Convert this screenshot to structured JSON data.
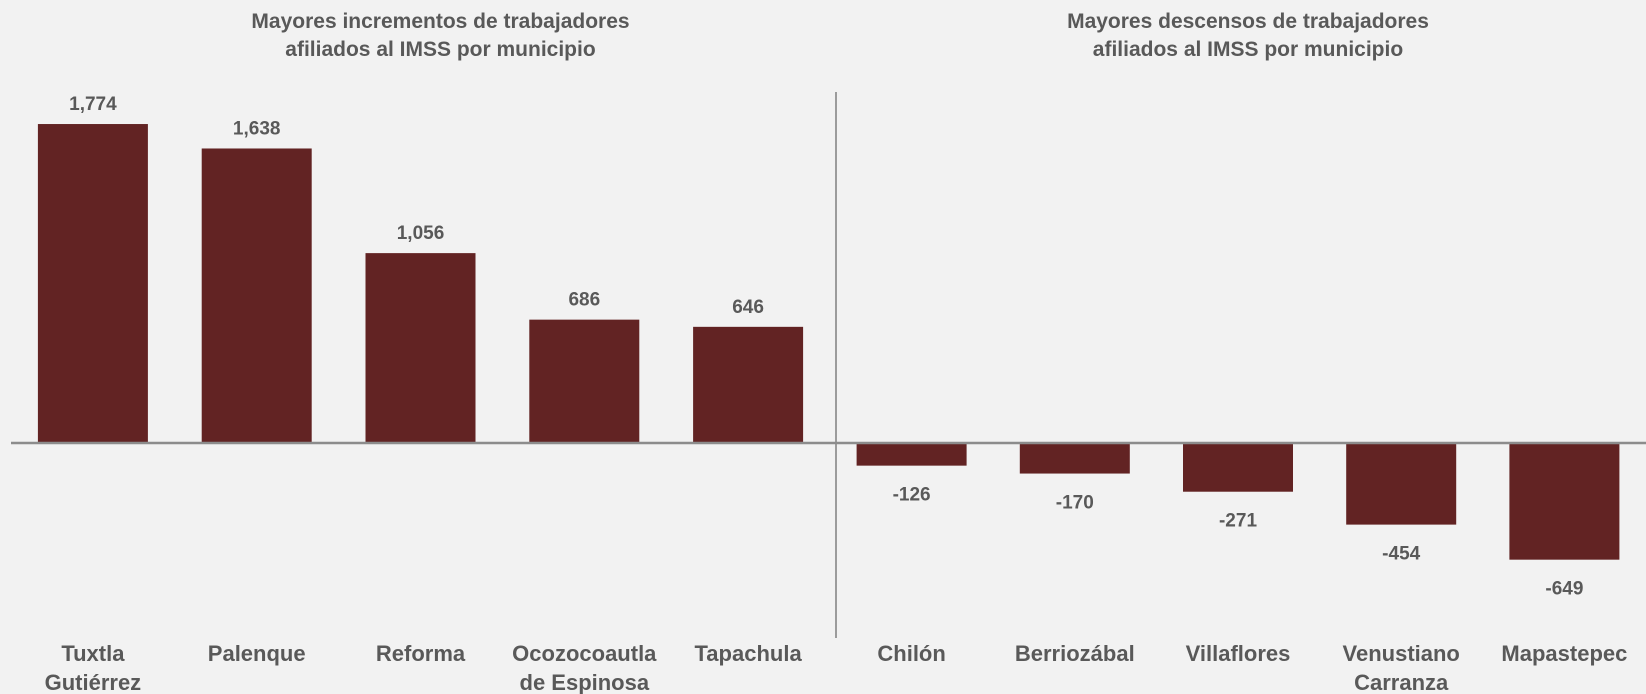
{
  "chart_data": [
    {
      "type": "bar",
      "title": [
        "Mayores incrementos de trabajadores",
        "afiliados al IMSS por municipio"
      ],
      "categories": [
        [
          "Tuxtla",
          "Gutiérrez"
        ],
        [
          "Palenque"
        ],
        [
          "Reforma"
        ],
        [
          "Ocozocoautla",
          "de Espinosa"
        ],
        [
          "Tapachula"
        ]
      ],
      "values": [
        1774,
        1638,
        1056,
        686,
        646
      ],
      "value_labels": [
        "1,774",
        "1,638",
        "1,056",
        "686",
        "646"
      ],
      "color": "#622323",
      "ylim": [
        -900,
        2000
      ]
    },
    {
      "type": "bar",
      "title": [
        "Mayores descensos de trabajadores",
        "afiliados al IMSS por municipio"
      ],
      "categories": [
        [
          "Chilón"
        ],
        [
          "Berriozábal"
        ],
        [
          "Villaflores"
        ],
        [
          "Venustiano",
          "Carranza"
        ],
        [
          "Mapastepec"
        ]
      ],
      "values": [
        -126,
        -170,
        -271,
        -454,
        -649
      ],
      "value_labels": [
        "-126",
        "-170",
        "-271",
        "-454",
        "-649"
      ],
      "color": "#622323",
      "ylim": [
        -900,
        2000
      ]
    }
  ]
}
